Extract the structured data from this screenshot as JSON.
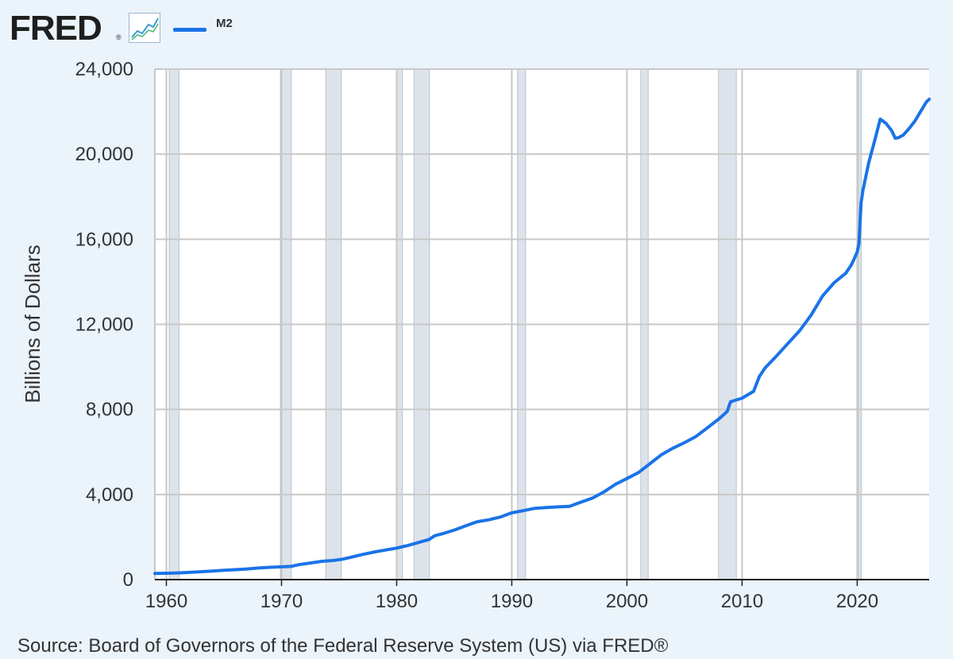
{
  "header": {
    "logo_text": "FRED",
    "logo_reg": "®",
    "legend_label": "M2",
    "logo_color": "#1f1f1f",
    "icon_name": "fred-graph-icon"
  },
  "source_note": "Source: Board of Governors of the Federal Reserve System (US) via FRED®",
  "chart_data": {
    "type": "line",
    "title": "",
    "xlabel": "",
    "ylabel": "Billions of Dollars",
    "xlim": [
      1959.0,
      2026.25
    ],
    "ylim": [
      0,
      24000
    ],
    "x_ticks": [
      1960,
      1970,
      1980,
      1990,
      2000,
      2010,
      2020
    ],
    "x_tick_labels": [
      "1960",
      "1970",
      "1980",
      "1990",
      "2000",
      "2010",
      "2020"
    ],
    "y_ticks": [
      0,
      4000,
      8000,
      12000,
      16000,
      20000,
      24000
    ],
    "y_tick_labels": [
      "0",
      "4,000",
      "8,000",
      "12,000",
      "16,000",
      "20,000",
      "24,000"
    ],
    "grid": true,
    "line_color": "#1a73e8",
    "recession_color": "#dde3ea",
    "recessions": [
      [
        1960.25,
        1961.1
      ],
      [
        1969.9,
        1970.85
      ],
      [
        1973.85,
        1975.2
      ],
      [
        1980.0,
        1980.5
      ],
      [
        1981.5,
        1982.85
      ],
      [
        1990.5,
        1991.2
      ],
      [
        2001.2,
        2001.85
      ],
      [
        2007.95,
        2009.5
      ],
      [
        2020.1,
        2020.35
      ]
    ],
    "series": [
      {
        "name": "M2",
        "points": [
          [
            1959.0,
            287
          ],
          [
            1960.0,
            300
          ],
          [
            1961.0,
            315
          ],
          [
            1962.0,
            340
          ],
          [
            1963.0,
            370
          ],
          [
            1964.0,
            400
          ],
          [
            1965.0,
            435
          ],
          [
            1966.0,
            465
          ],
          [
            1967.0,
            500
          ],
          [
            1968.0,
            545
          ],
          [
            1969.0,
            580
          ],
          [
            1970.0,
            600
          ],
          [
            1970.8,
            620
          ],
          [
            1971.5,
            700
          ],
          [
            1972.5,
            780
          ],
          [
            1973.5,
            860
          ],
          [
            1974.5,
            900
          ],
          [
            1975.3,
            960
          ],
          [
            1976.0,
            1050
          ],
          [
            1977.0,
            1180
          ],
          [
            1978.0,
            1290
          ],
          [
            1979.0,
            1390
          ],
          [
            1980.0,
            1480
          ],
          [
            1981.0,
            1610
          ],
          [
            1982.0,
            1760
          ],
          [
            1982.8,
            1880
          ],
          [
            1983.3,
            2060
          ],
          [
            1984.0,
            2160
          ],
          [
            1985.0,
            2330
          ],
          [
            1986.0,
            2530
          ],
          [
            1987.0,
            2720
          ],
          [
            1988.0,
            2810
          ],
          [
            1989.0,
            2940
          ],
          [
            1990.0,
            3140
          ],
          [
            1991.0,
            3240
          ],
          [
            1992.0,
            3350
          ],
          [
            1993.0,
            3390
          ],
          [
            1994.0,
            3420
          ],
          [
            1995.0,
            3440
          ],
          [
            1996.0,
            3640
          ],
          [
            1997.0,
            3830
          ],
          [
            1998.0,
            4120
          ],
          [
            1999.0,
            4480
          ],
          [
            2000.0,
            4750
          ],
          [
            2001.0,
            5030
          ],
          [
            2002.0,
            5450
          ],
          [
            2003.0,
            5870
          ],
          [
            2004.0,
            6180
          ],
          [
            2005.0,
            6440
          ],
          [
            2006.0,
            6730
          ],
          [
            2007.0,
            7140
          ],
          [
            2008.0,
            7560
          ],
          [
            2008.7,
            7900
          ],
          [
            2009.0,
            8360
          ],
          [
            2010.0,
            8530
          ],
          [
            2011.0,
            8850
          ],
          [
            2011.5,
            9550
          ],
          [
            2012.0,
            9950
          ],
          [
            2013.0,
            10520
          ],
          [
            2014.0,
            11110
          ],
          [
            2015.0,
            11700
          ],
          [
            2016.0,
            12440
          ],
          [
            2017.0,
            13340
          ],
          [
            2018.0,
            13960
          ],
          [
            2019.0,
            14400
          ],
          [
            2019.5,
            14800
          ],
          [
            2020.0,
            15400
          ],
          [
            2020.15,
            15800
          ],
          [
            2020.33,
            17700
          ],
          [
            2020.5,
            18300
          ],
          [
            2021.0,
            19600
          ],
          [
            2021.5,
            20600
          ],
          [
            2022.0,
            21650
          ],
          [
            2022.5,
            21450
          ],
          [
            2023.0,
            21100
          ],
          [
            2023.3,
            20750
          ],
          [
            2023.6,
            20780
          ],
          [
            2024.0,
            20900
          ],
          [
            2024.5,
            21200
          ],
          [
            2025.0,
            21550
          ],
          [
            2025.5,
            22000
          ],
          [
            2026.0,
            22450
          ],
          [
            2026.25,
            22580
          ]
        ]
      }
    ]
  }
}
